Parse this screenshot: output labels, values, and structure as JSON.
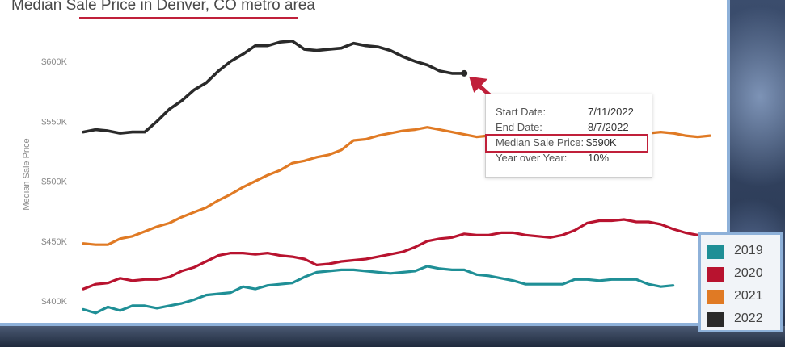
{
  "title": "Median Sale Price in Denver, CO metro area",
  "corner_text": "",
  "colors": {
    "2019": "#1f8f96",
    "2020": "#b8132f",
    "2021": "#e07a24",
    "2022": "#2a2a2a",
    "annotation": "#c0203a"
  },
  "tooltip": {
    "start_label": "Start Date:",
    "start_value": "7/11/2022",
    "end_label": "End Date:",
    "end_value": "8/7/2022",
    "price_label": "Median Sale Price:",
    "price_value": "$590K",
    "yoy_label": "Year over Year:",
    "yoy_value": "10%"
  },
  "chart_data": {
    "type": "line",
    "title": "Median Sale Price in Denver, CO metro area",
    "xlabel": "",
    "ylabel": "Median Sale Price",
    "ylim": [
      392000,
      625000
    ],
    "yticks": [
      {
        "value": 400000,
        "label": "$400K"
      },
      {
        "value": 450000,
        "label": "$450K"
      },
      {
        "value": 500000,
        "label": "$500K"
      },
      {
        "value": 550000,
        "label": "$550K"
      },
      {
        "value": 600000,
        "label": "$600K"
      }
    ],
    "grid": false,
    "legend_position": "bottom-right",
    "series": [
      {
        "name": "2019",
        "values": [
          393000,
          390000,
          395000,
          392000,
          396000,
          396000,
          394000,
          396000,
          398000,
          401000,
          405000,
          406000,
          407000,
          412000,
          410000,
          413000,
          414000,
          415000,
          420000,
          424000,
          425000,
          426000,
          426000,
          425000,
          424000,
          423000,
          424000,
          425000,
          429000,
          427000,
          426000,
          426000,
          422000,
          421000,
          419000,
          417000,
          414000,
          414000,
          414000,
          414000,
          418000,
          418000,
          417000,
          418000,
          418000,
          418000,
          414000,
          412000,
          413000
        ]
      },
      {
        "name": "2020",
        "values": [
          410000,
          414000,
          415000,
          419000,
          417000,
          418000,
          418000,
          420000,
          425000,
          428000,
          433000,
          438000,
          440000,
          440000,
          439000,
          440000,
          438000,
          437000,
          435000,
          430000,
          431000,
          433000,
          434000,
          435000,
          437000,
          439000,
          441000,
          445000,
          450000,
          452000,
          453000,
          456000,
          455000,
          455000,
          457000,
          457000,
          455000,
          454000,
          453000,
          455000,
          459000,
          465000,
          467000,
          467000,
          468000,
          466000,
          466000,
          464000,
          460000,
          457000,
          455000,
          454000
        ]
      },
      {
        "name": "2021",
        "values": [
          448000,
          447000,
          447000,
          452000,
          454000,
          458000,
          462000,
          465000,
          470000,
          474000,
          478000,
          484000,
          489000,
          495000,
          500000,
          505000,
          509000,
          515000,
          517000,
          520000,
          522000,
          526000,
          534000,
          535000,
          538000,
          540000,
          542000,
          543000,
          545000,
          543000,
          541000,
          539000,
          537000,
          538000,
          538000,
          537000,
          535000,
          534000,
          534000,
          535000,
          537000,
          537000,
          538000,
          538000,
          539000,
          539000,
          540000,
          541000,
          540000,
          538000,
          537000,
          538000
        ]
      },
      {
        "name": "2022",
        "values": [
          541000,
          543000,
          542000,
          540000,
          541000,
          541000,
          550000,
          560000,
          567000,
          576000,
          582000,
          592000,
          600000,
          606000,
          613000,
          613000,
          616000,
          617000,
          610000,
          609000,
          610000,
          611000,
          615000,
          613000,
          612000,
          609000,
          604000,
          600000,
          597000,
          592000,
          590000,
          590000
        ]
      }
    ]
  }
}
